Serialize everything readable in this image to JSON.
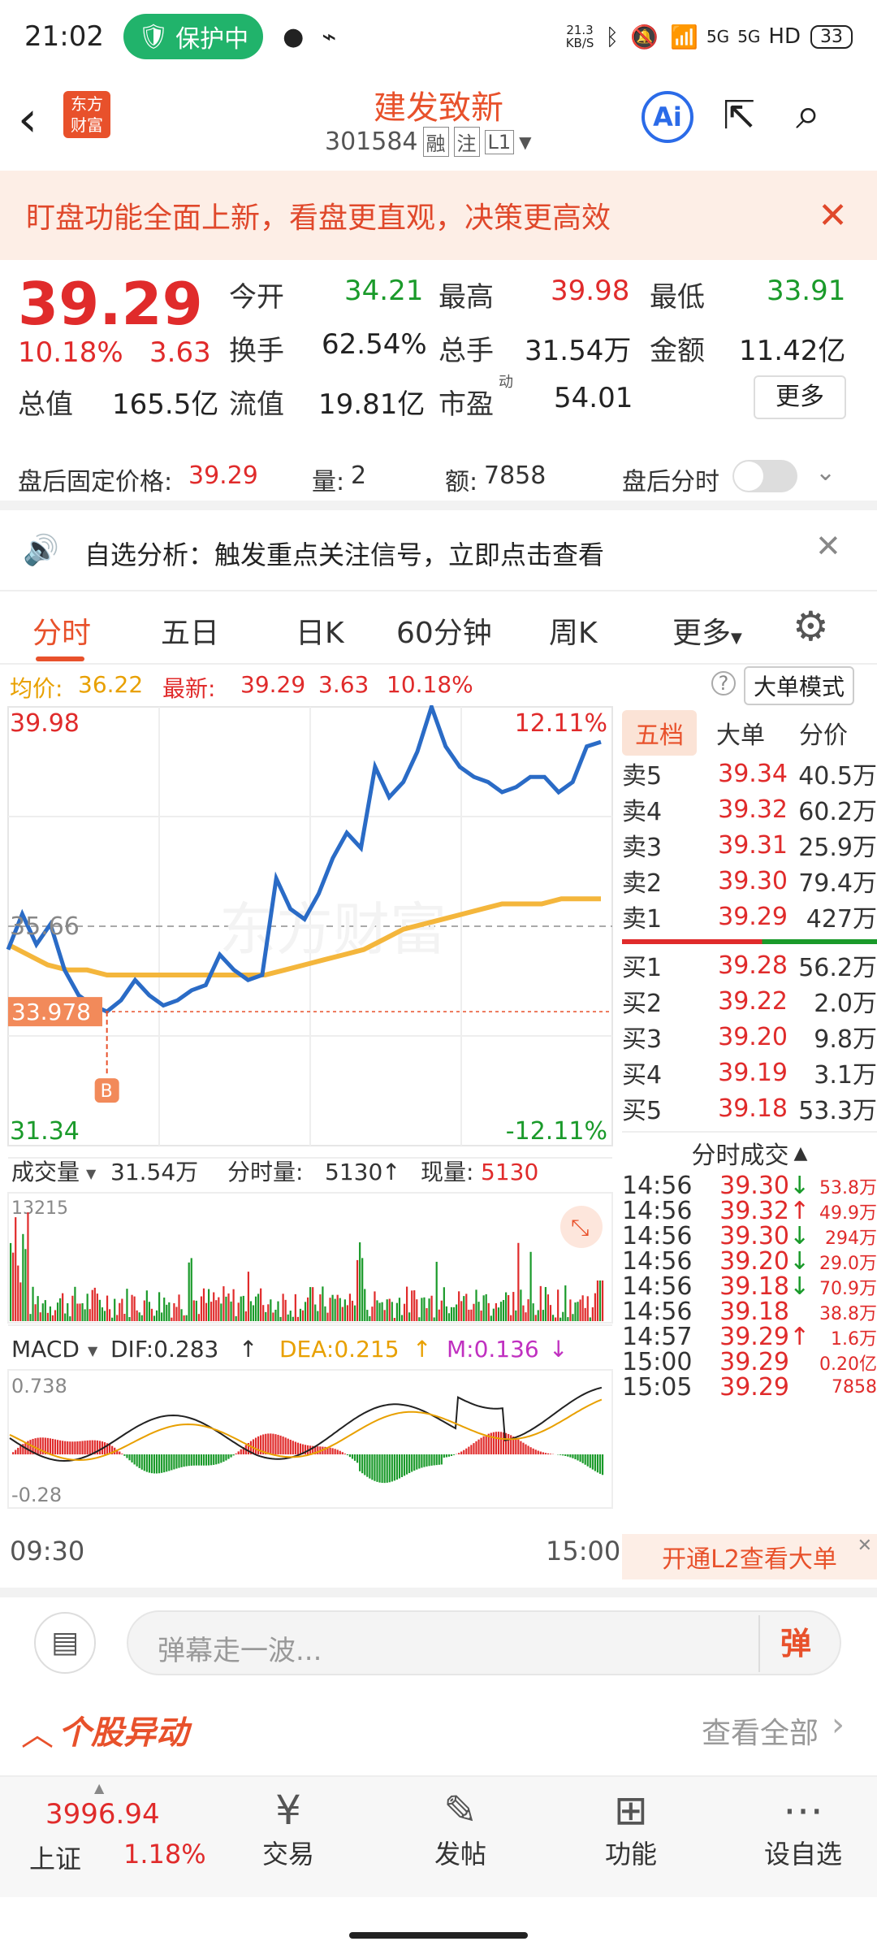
{
  "status_bar": {
    "time": "21:02",
    "protect": "保护中",
    "speed_top": "21.3",
    "speed_unit": "KB/S",
    "signal_a": "5G",
    "signal_b": "5G",
    "hd": "HD",
    "battery": "33"
  },
  "header": {
    "logo_text": "东方财富",
    "title": "建发致新",
    "code": "301584",
    "tag_rong": "融",
    "tag_zhu": "注",
    "tag_level": "L1",
    "ai_label": "Ai"
  },
  "banner": {
    "text": "盯盘功能全面上新，看盘更直观，决策更高效"
  },
  "quote": {
    "price": "39.29",
    "change_pct": "10.18%",
    "change": "3.63",
    "open_label": "今开",
    "open": "34.21",
    "high_label": "最高",
    "high": "39.98",
    "low_label": "最低",
    "low": "33.91",
    "turnover_label": "换手",
    "turnover": "62.54%",
    "vol_label": "总手",
    "vol": "31.54万",
    "amount_label": "金额",
    "amount": "11.42亿",
    "mktcap_label": "总值",
    "mktcap": "165.5亿",
    "float_label": "流值",
    "float": "19.81亿",
    "pe_label": "市盈",
    "pe_sup": "动",
    "pe": "54.01",
    "more": "更多"
  },
  "after_hours": {
    "fixed_label": "盘后固定价格:",
    "fixed": "39.29",
    "qty_label": "量:",
    "qty": "2",
    "amt_label": "额:",
    "amt": "7858",
    "toggle_label": "盘后分时"
  },
  "notice": {
    "text": "自选分析：触发重点关注信号，立即点击查看"
  },
  "tabs": [
    "分时",
    "五日",
    "日K",
    "60分钟",
    "周K",
    "更多"
  ],
  "avg_line": {
    "avg_label": "均价:",
    "avg": "36.22",
    "latest_label": "最新:",
    "latest": "39.29",
    "chg": "3.63",
    "pct": "10.18%",
    "mode": "大单模式"
  },
  "chart": {
    "y_top": "39.98",
    "y_mid": "35.66",
    "y_bottom": "31.34",
    "pct_top": "12.11%",
    "pct_bottom": "-12.11%",
    "marker_price": "33.978",
    "marker_label": "B",
    "watermark": "东方财富",
    "x_start": "09:30",
    "x_end": "15:00"
  },
  "chart_data": {
    "type": "line",
    "x_range": [
      "09:30",
      "15:00"
    ],
    "ylim": [
      31.34,
      39.98
    ],
    "series": [],
    "price_line": [
      35.2,
      35.9,
      35.3,
      35.7,
      34.8,
      34.3,
      34.1,
      33.98,
      34.2,
      34.6,
      34.3,
      34.1,
      34.2,
      34.4,
      34.5,
      35.1,
      34.8,
      34.6,
      34.7,
      36.6,
      36.0,
      35.8,
      36.3,
      37.0,
      37.5,
      37.2,
      38.8,
      38.2,
      38.5,
      39.1,
      39.98,
      39.2,
      38.8,
      38.6,
      38.5,
      38.3,
      38.4,
      38.6,
      38.6,
      38.3,
      38.5,
      39.2,
      39.29
    ],
    "avg_line": [
      35.3,
      35.1,
      34.9,
      34.8,
      34.8,
      34.7,
      34.7,
      34.7,
      34.7,
      34.7,
      34.7,
      34.7,
      34.7,
      34.7,
      34.8,
      34.9,
      35.0,
      35.1,
      35.2,
      35.4,
      35.6,
      35.7,
      35.8,
      35.9,
      36.0,
      36.1,
      36.1,
      36.1,
      36.2,
      36.2,
      36.2
    ]
  },
  "volume": {
    "label": "成交量",
    "total": "31.54万",
    "minute_label": "分时量:",
    "minute": "5130",
    "now_label": "现量:",
    "now": "5130",
    "max": "13215"
  },
  "macd": {
    "label": "MACD",
    "dif": "DIF:0.283",
    "dea": "DEA:0.215",
    "m": "M:0.136",
    "top": "0.738",
    "bottom": "-0.28"
  },
  "orderbook": {
    "tabs": [
      "五档",
      "大单",
      "分价"
    ],
    "sells": [
      {
        "n": "卖5",
        "p": "39.34",
        "v": "40.5万"
      },
      {
        "n": "卖4",
        "p": "39.32",
        "v": "60.2万"
      },
      {
        "n": "卖3",
        "p": "39.31",
        "v": "25.9万"
      },
      {
        "n": "卖2",
        "p": "39.30",
        "v": "79.4万"
      },
      {
        "n": "卖1",
        "p": "39.29",
        "v": "427万"
      }
    ],
    "buys": [
      {
        "n": "买1",
        "p": "39.28",
        "v": "56.2万"
      },
      {
        "n": "买2",
        "p": "39.22",
        "v": "2.0万"
      },
      {
        "n": "买3",
        "p": "39.20",
        "v": "9.8万"
      },
      {
        "n": "买4",
        "p": "39.19",
        "v": "3.1万"
      },
      {
        "n": "买5",
        "p": "39.18",
        "v": "53.3万"
      }
    ],
    "ticks_label": "分时成交",
    "ticks": [
      {
        "t": "14:56",
        "p": "39.30",
        "v": "53.8万",
        "d": "↓"
      },
      {
        "t": "14:56",
        "p": "39.32",
        "v": "49.9万",
        "d": "↑"
      },
      {
        "t": "14:56",
        "p": "39.30",
        "v": "294万",
        "d": "↓"
      },
      {
        "t": "14:56",
        "p": "39.20",
        "v": "29.0万",
        "d": "↓"
      },
      {
        "t": "14:56",
        "p": "39.18",
        "v": "70.9万",
        "d": "↓"
      },
      {
        "t": "14:56",
        "p": "39.18",
        "v": "38.8万",
        "d": ""
      },
      {
        "t": "14:57",
        "p": "39.29",
        "v": "1.6万",
        "d": "↑"
      },
      {
        "t": "15:00",
        "p": "39.29",
        "v": "0.20亿",
        "d": ""
      },
      {
        "t": "15:05",
        "p": "39.29",
        "v": "7858",
        "d": ""
      }
    ],
    "l2": "开通L2查看大单"
  },
  "danmu": {
    "placeholder": "弹幕走一波...",
    "btn": "弹"
  },
  "stock_move": {
    "title": "个股异动",
    "view_all": "查看全部"
  },
  "bottom_bar": {
    "index_value": "3996.94",
    "index_name": "上证",
    "index_pct": "1.18%",
    "items": [
      "交易",
      "发帖",
      "功能",
      "设自选"
    ]
  }
}
